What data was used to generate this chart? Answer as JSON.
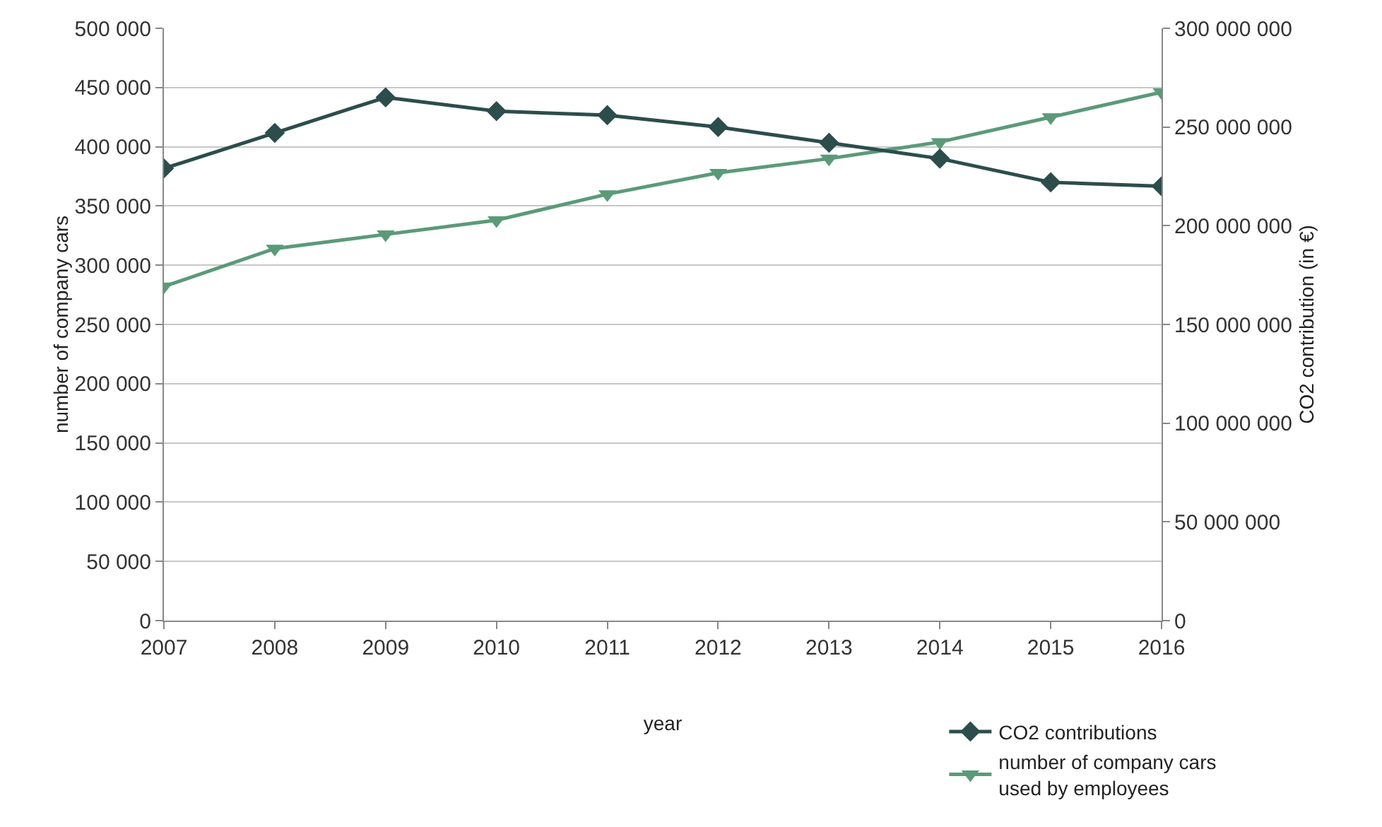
{
  "chart_data": {
    "type": "line",
    "xlabel": "year",
    "ylabel": "number of company cars",
    "y2label": "CO2 contribution (in €)",
    "x": [
      2007,
      2008,
      2009,
      2010,
      2011,
      2012,
      2013,
      2014,
      2015,
      2016
    ],
    "xlim": [
      2007,
      2016
    ],
    "xticks": [
      2007,
      2008,
      2009,
      2010,
      2011,
      2012,
      2013,
      2014,
      2015,
      2016
    ],
    "ylim": [
      0,
      500000
    ],
    "yticks": [
      {
        "value": 0,
        "label": "0"
      },
      {
        "value": 50000,
        "label": "50 000"
      },
      {
        "value": 100000,
        "label": "100 000"
      },
      {
        "value": 150000,
        "label": "150 000"
      },
      {
        "value": 200000,
        "label": "200 000"
      },
      {
        "value": 250000,
        "label": "250 000"
      },
      {
        "value": 300000,
        "label": "300 000"
      },
      {
        "value": 350000,
        "label": "350 000"
      },
      {
        "value": 400000,
        "label": "400 000"
      },
      {
        "value": 450000,
        "label": "450 000"
      },
      {
        "value": 500000,
        "label": "500 000"
      }
    ],
    "y2lim": [
      0,
      300000000
    ],
    "y2ticks": [
      {
        "value": 0,
        "label": "0"
      },
      {
        "value": 50000000,
        "label": "50 000 000"
      },
      {
        "value": 100000000,
        "label": "100 000 000"
      },
      {
        "value": 150000000,
        "label": "150 000 000"
      },
      {
        "value": 200000000,
        "label": "200 000 000"
      },
      {
        "value": 250000000,
        "label": "250 000 000"
      },
      {
        "value": 300000000,
        "label": "300 000 000"
      }
    ],
    "series": [
      {
        "name": "CO2 contributions",
        "color": "#2c4d4c",
        "axis": "y2",
        "marker": "diamond",
        "values": [
          229000000,
          247000000,
          265000000,
          258000000,
          256000000,
          250000000,
          242000000,
          234000000,
          222000000,
          220000000
        ]
      },
      {
        "name": "number of company cars used by employees",
        "color": "#5b9a79",
        "marker": "triangle",
        "values": [
          282000,
          314000,
          326000,
          338000,
          360000,
          378000,
          390000,
          404000,
          425000,
          446000
        ]
      }
    ],
    "grid": "y",
    "legend": "bottom right",
    "line_style": "solid"
  }
}
